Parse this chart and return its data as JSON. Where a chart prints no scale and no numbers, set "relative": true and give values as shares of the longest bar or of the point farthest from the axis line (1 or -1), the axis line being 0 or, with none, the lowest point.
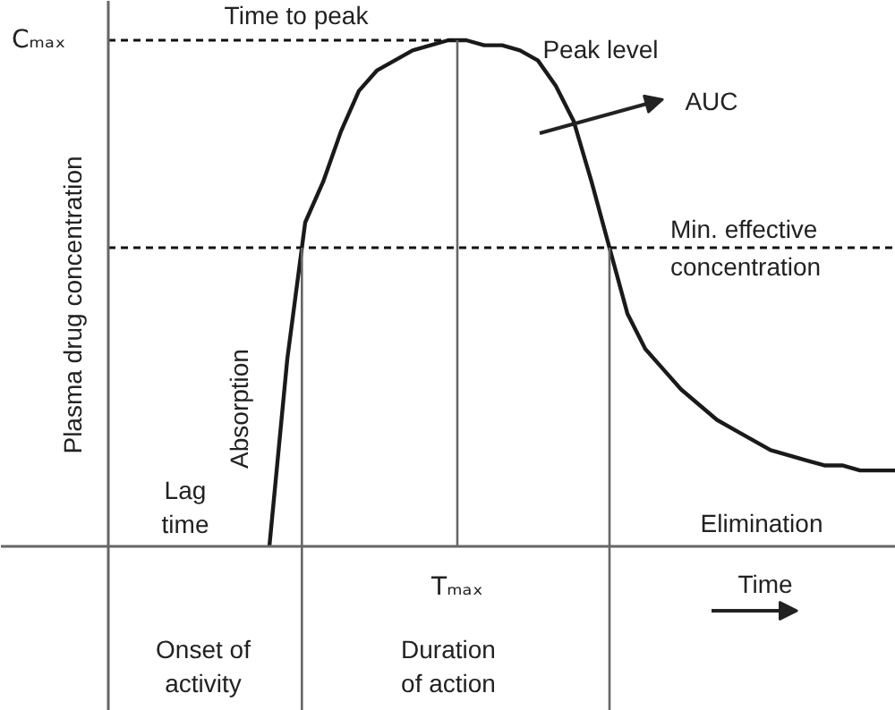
{
  "chart_data": {
    "type": "line",
    "relative": true,
    "ylabel": "Plasma drug concentration",
    "xlabel": "Time",
    "categories": [
      null,
      null,
      null,
      null,
      null,
      null,
      null,
      null,
      null,
      null,
      null,
      null,
      null,
      null,
      null,
      null,
      null,
      null,
      null,
      null,
      null,
      null,
      null,
      null,
      null,
      null,
      null,
      null,
      null,
      null,
      null,
      null,
      null,
      null,
      null,
      null,
      null,
      null,
      null,
      null,
      null,
      null,
      null,
      null,
      null
    ],
    "series": [
      {
        "color": "#1a1a1a",
        "values": [
          null,
          null,
          null,
          null,
          null,
          null,
          null,
          null,
          null,
          0,
          0.37,
          0.64,
          0.72,
          0.82,
          0.9,
          0.94,
          0.96,
          0.98,
          0.99,
          1.0,
          1.0,
          0.99,
          0.99,
          0.98,
          0.96,
          0.91,
          0.84,
          0.72,
          0.59,
          0.46,
          0.39,
          0.35,
          0.31,
          0.28,
          0.25,
          0.23,
          0.21,
          0.19,
          0.18,
          0.17,
          0.16,
          0.16,
          0.15,
          0.15,
          0.15
        ]
      }
    ],
    "ref_lines": [
      {
        "axis": "y",
        "value": 1,
        "label": "Cₘₐₓ",
        "line_style": "dashed"
      },
      {
        "axis": "y",
        "value": 0.59,
        "label": "Min. effective concentration",
        "line_style": "dashed"
      }
    ],
    "annotations": [
      "Time to peak",
      "Peak level",
      "AUC",
      "Absorption",
      "Lag time",
      "Elimination",
      "Onset of activity",
      "Duration of action",
      "Tₘₐₓ"
    ]
  }
}
